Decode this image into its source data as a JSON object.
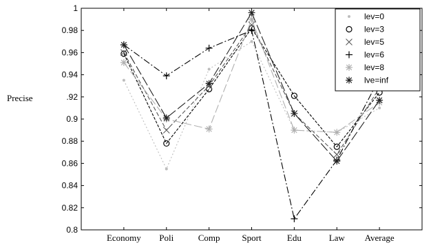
{
  "chart_data": {
    "type": "line",
    "title": "",
    "xlabel": "",
    "ylabel": "Precise",
    "categories": [
      "Economy",
      "Poli",
      "Comp",
      "Sport",
      "Edu",
      "Law",
      "Average"
    ],
    "ylim": [
      0.8,
      1.0
    ],
    "yticks": [
      0.8,
      0.82,
      0.84,
      0.86,
      0.88,
      0.9,
      0.92,
      0.94,
      0.96,
      0.98,
      1
    ],
    "ytick_labels": [
      "0.8",
      "0.82",
      "0.84",
      "0.86",
      "0.88",
      "0.9",
      ".92",
      "0.94",
      "0.96",
      "0.98",
      "1"
    ],
    "grid": false,
    "legend_position": "top-right",
    "series": [
      {
        "name": "lev=0",
        "marker": "dot",
        "dash": "dotted",
        "color": "#bdbdbd",
        "values": [
          0.935,
          0.855,
          0.945,
          0.97,
          0.89,
          0.888,
          0.91
        ]
      },
      {
        "name": "lev=3",
        "marker": "circle",
        "dash": "dashed-fine",
        "color": "#000000",
        "values": [
          0.959,
          0.878,
          0.927,
          0.982,
          0.921,
          0.875,
          0.924
        ]
      },
      {
        "name": "lev=5",
        "marker": "x",
        "dash": "dashed",
        "color": "#555555",
        "values": [
          0.96,
          0.89,
          0.93,
          0.985,
          0.905,
          0.868,
          0.928
        ]
      },
      {
        "name": "lev=6",
        "marker": "plus",
        "dash": "dashdot",
        "color": "#000000",
        "values": [
          0.967,
          0.939,
          0.964,
          0.98,
          0.81,
          0.863,
          0.937
        ]
      },
      {
        "name": "lev=8",
        "marker": "star",
        "dash": "longdash",
        "color": "#b0b0b0",
        "values": [
          0.951,
          0.9,
          0.891,
          0.99,
          0.89,
          0.888,
          0.915
        ]
      },
      {
        "name": "lve=inf",
        "marker": "star",
        "dash": "longdash-heavy",
        "color": "#222222",
        "values": [
          0.967,
          0.901,
          0.932,
          0.996,
          0.905,
          0.862,
          0.917
        ]
      }
    ]
  }
}
